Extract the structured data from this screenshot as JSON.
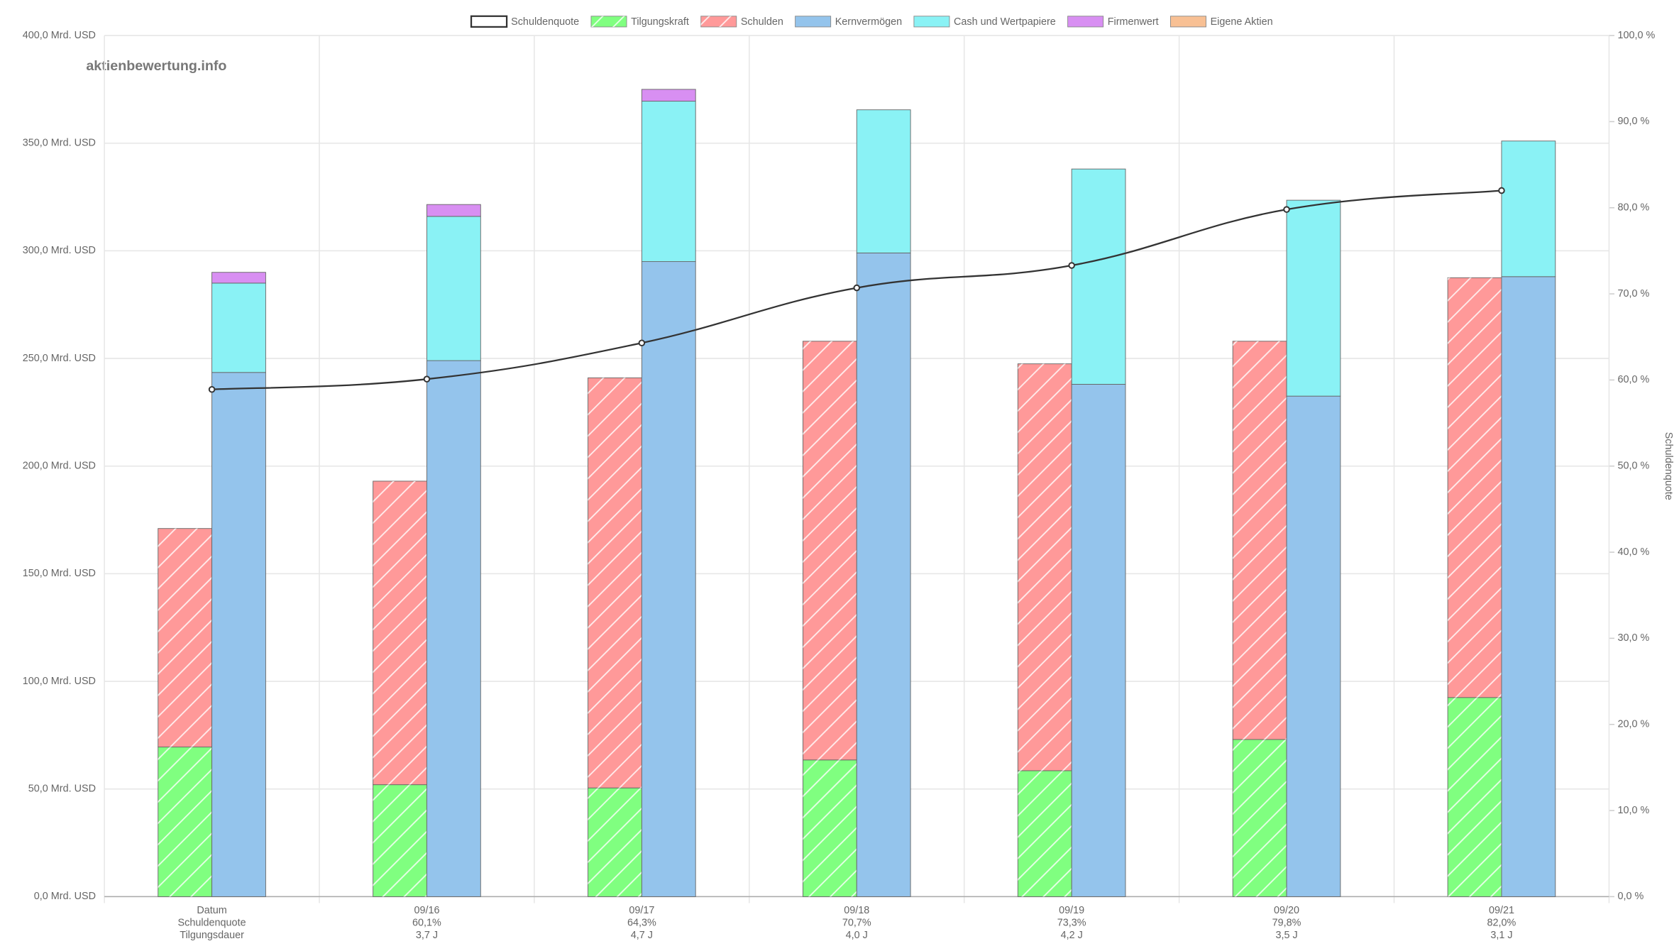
{
  "chart_data": {
    "type": "bar",
    "watermark": "aktienbewertung.info",
    "y2_label": "Schuldenquote",
    "categories": [
      [
        "Datum",
        "Schuldenquote",
        "Tilgungsdauer"
      ],
      [
        "09/16",
        "60,1%",
        "3,7 J"
      ],
      [
        "09/17",
        "64,3%",
        "4,7 J"
      ],
      [
        "09/18",
        "70,7%",
        "4,0 J"
      ],
      [
        "09/19",
        "73,3%",
        "4,2 J"
      ],
      [
        "09/20",
        "79,8%",
        "3,5 J"
      ],
      [
        "09/21",
        "82,0%",
        "3,1 J"
      ]
    ],
    "series": [
      {
        "name": "Schuldenquote",
        "type": "line",
        "color": "#333333",
        "axis": "y2",
        "values": [
          58.9,
          60.1,
          64.3,
          70.7,
          73.3,
          79.8,
          82.0
        ]
      },
      {
        "name": "Tilgungskraft",
        "color": "#80ff80",
        "stack": "left",
        "hatch": true,
        "values": [
          69.5,
          52,
          50.5,
          63.5,
          58.5,
          73,
          92.5
        ]
      },
      {
        "name": "Schulden",
        "color": "#ff9999",
        "stack": "left",
        "hatch": true,
        "values": [
          101.5,
          141,
          190.5,
          194.5,
          189,
          185,
          195
        ]
      },
      {
        "name": "Kernvermögen",
        "color": "#94c4ec",
        "stack": "right",
        "values": [
          243.5,
          249,
          295,
          299,
          238,
          232.5,
          288
        ]
      },
      {
        "name": "Cash und Wertpapiere",
        "color": "#8af2f5",
        "stack": "right",
        "values": [
          41.5,
          67,
          74.5,
          66.5,
          100,
          91,
          63
        ]
      },
      {
        "name": "Firmenwert",
        "color": "#d88ff2",
        "stack": "right",
        "values": [
          5,
          5.5,
          5.5,
          0,
          0,
          0,
          0
        ]
      },
      {
        "name": "Eigene Aktien",
        "color": "#f8c094",
        "stack": "right",
        "values": [
          0,
          0,
          0,
          0,
          0,
          0,
          0
        ]
      }
    ],
    "ylim": [
      0,
      400
    ],
    "yticks": [
      {
        "value": 0,
        "label": "0,0 Mrd. USD"
      },
      {
        "value": 50,
        "label": "50,0 Mrd. USD"
      },
      {
        "value": 100,
        "label": "100,0 Mrd. USD"
      },
      {
        "value": 150,
        "label": "150,0 Mrd. USD"
      },
      {
        "value": 200,
        "label": "200,0 Mrd. USD"
      },
      {
        "value": 250,
        "label": "250,0 Mrd. USD"
      },
      {
        "value": 300,
        "label": "300,0 Mrd. USD"
      },
      {
        "value": 350,
        "label": "350,0 Mrd. USD"
      },
      {
        "value": 400,
        "label": "400,0 Mrd. USD"
      }
    ],
    "y2lim": [
      0,
      100
    ],
    "y2ticks": [
      {
        "value": 0,
        "label": "0,0 %"
      },
      {
        "value": 10,
        "label": "10,0 %"
      },
      {
        "value": 20,
        "label": "20,0 %"
      },
      {
        "value": 30,
        "label": "30,0 %"
      },
      {
        "value": 40,
        "label": "40,0 %"
      },
      {
        "value": 50,
        "label": "50,0 %"
      },
      {
        "value": 60,
        "label": "60,0 %"
      },
      {
        "value": 70,
        "label": "70,0 %"
      },
      {
        "value": 80,
        "label": "80,0 %"
      },
      {
        "value": 90,
        "label": "90,0 %"
      },
      {
        "value": 100,
        "label": "100,0 %"
      }
    ],
    "grid": true,
    "legend": "top"
  }
}
